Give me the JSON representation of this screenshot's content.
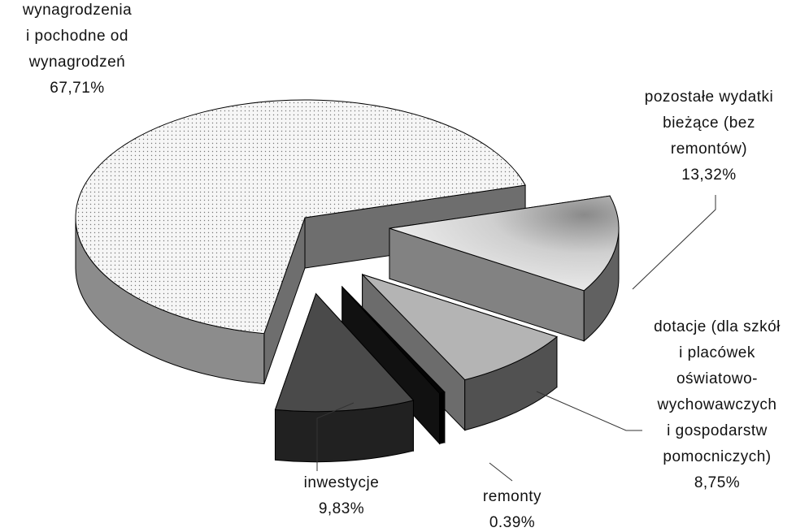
{
  "chart_data": {
    "type": "pie3d",
    "categories": [
      "wynagrodzenia\ni pochodne od\nwynagrodzeń",
      "pozostałe wydatki\nbieżące (bez\nremontów)",
      "dotacje (dla szkół\ni placówek\noświatowo-\nwychowawczych\ni gospodarstw\npomocniczych)",
      "remonty",
      "inwestycje"
    ],
    "values": [
      67.71,
      13.32,
      8.75,
      0.39,
      9.83
    ],
    "value_labels": [
      "67,71%",
      "13,32%",
      "8,75%",
      "0.39%",
      "9,83%"
    ],
    "colors": [
      "#f4f4f4",
      "#d8d8d8",
      "#b4b4b4",
      "#050505",
      "#4a4a4a"
    ]
  }
}
